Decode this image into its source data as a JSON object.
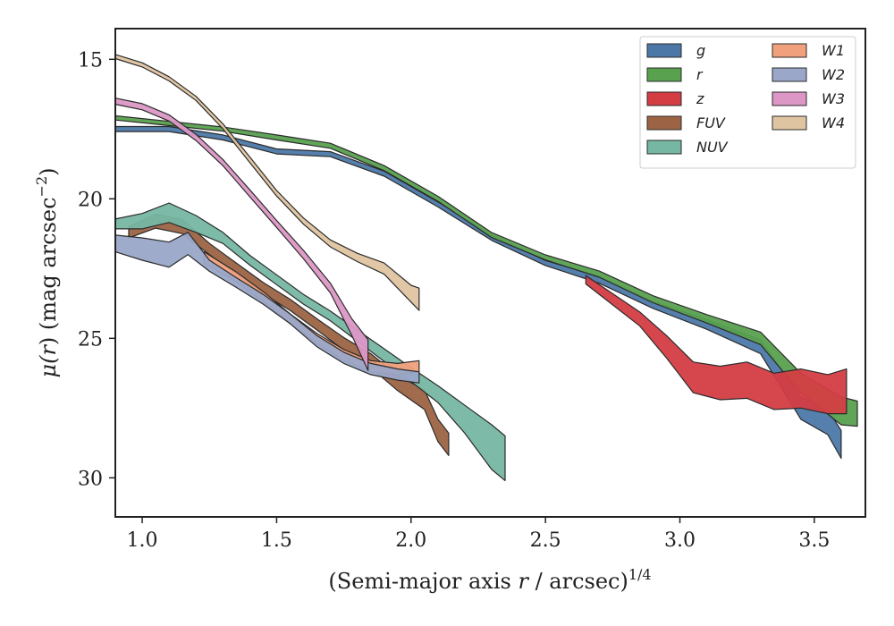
{
  "chart_data": {
    "type": "area",
    "title": "",
    "xlabel_main": "(Semi-major axis ",
    "xlabel_var": "r",
    "xlabel_tail": " / arcsec)",
    "xlabel_exp": "1/4",
    "ylabel_pre": "μ(",
    "ylabel_var": "r",
    "ylabel_post": ") (mag arcsec",
    "ylabel_exp": "−2",
    "ylabel_close": ")",
    "xlim": [
      0.9,
      3.69
    ],
    "ylim": [
      31.4,
      13.9
    ],
    "y_inverted": true,
    "xticks": [
      1.0,
      1.5,
      2.0,
      2.5,
      3.0,
      3.5
    ],
    "xtick_labels": [
      "1.0",
      "1.5",
      "2.0",
      "2.5",
      "3.0",
      "3.5"
    ],
    "yticks": [
      15,
      20,
      25,
      30
    ],
    "ytick_labels": [
      "15",
      "20",
      "25",
      "30"
    ],
    "grid": false,
    "legend_placement": "top-right",
    "series": [
      {
        "name": "g",
        "color": "#4c78a8",
        "x": [
          0.9,
          1.1,
          1.3,
          1.5,
          1.7,
          1.9,
          2.1,
          2.3,
          2.5,
          2.7,
          2.9,
          3.1,
          3.3,
          3.45,
          3.55,
          3.6
        ],
        "y": [
          17.5,
          17.5,
          17.8,
          18.3,
          18.4,
          19.1,
          20.2,
          21.4,
          22.3,
          22.9,
          23.8,
          24.5,
          25.3,
          27.5,
          28.0,
          28.8
        ],
        "w": [
          0.18,
          0.18,
          0.18,
          0.18,
          0.18,
          0.18,
          0.18,
          0.18,
          0.18,
          0.25,
          0.25,
          0.35,
          0.5,
          0.8,
          0.9,
          1.0
        ]
      },
      {
        "name": "r",
        "color": "#59a14f",
        "x": [
          0.9,
          1.1,
          1.3,
          1.5,
          1.7,
          1.9,
          2.1,
          2.3,
          2.5,
          2.7,
          2.9,
          3.1,
          3.3,
          3.45,
          3.6,
          3.66
        ],
        "y": [
          17.1,
          17.3,
          17.5,
          17.8,
          18.1,
          18.9,
          20.0,
          21.3,
          22.1,
          22.7,
          23.6,
          24.3,
          25.0,
          26.6,
          27.6,
          27.7
        ],
        "w": [
          0.15,
          0.15,
          0.15,
          0.18,
          0.18,
          0.18,
          0.18,
          0.18,
          0.18,
          0.22,
          0.25,
          0.3,
          0.45,
          0.7,
          1.0,
          0.9
        ]
      },
      {
        "name": "z",
        "color": "#d43d43",
        "x": [
          2.65,
          2.75,
          2.85,
          2.95,
          3.05,
          3.15,
          3.25,
          3.35,
          3.45,
          3.55,
          3.62
        ],
        "y": [
          22.9,
          23.6,
          24.3,
          25.3,
          26.4,
          26.6,
          26.5,
          26.9,
          26.8,
          27.0,
          26.9
        ],
        "w": [
          0.3,
          0.4,
          0.5,
          0.8,
          1.1,
          1.2,
          1.3,
          1.3,
          1.4,
          1.4,
          1.6
        ]
      },
      {
        "name": "FUV",
        "color": "#9c6444",
        "x": [
          0.95,
          1.05,
          1.15,
          1.25,
          1.35,
          1.45,
          1.55,
          1.65,
          1.75,
          1.85,
          1.95,
          2.05,
          2.1,
          2.14
        ],
        "y": [
          21.2,
          20.8,
          21.0,
          21.8,
          22.5,
          23.2,
          23.8,
          24.5,
          25.2,
          25.8,
          26.6,
          27.2,
          28.3,
          28.8
        ],
        "w": [
          0.4,
          0.5,
          0.5,
          0.4,
          0.4,
          0.4,
          0.4,
          0.4,
          0.45,
          0.5,
          0.55,
          0.7,
          0.8,
          0.8
        ]
      },
      {
        "name": "NUV",
        "color": "#76b7a3",
        "x": [
          0.9,
          1.0,
          1.1,
          1.2,
          1.3,
          1.4,
          1.5,
          1.6,
          1.7,
          1.8,
          1.9,
          2.0,
          2.1,
          2.2,
          2.3,
          2.35
        ],
        "y": [
          20.9,
          20.8,
          20.5,
          20.9,
          21.4,
          22.2,
          22.9,
          23.6,
          24.2,
          24.9,
          25.6,
          26.3,
          27.0,
          27.9,
          28.9,
          29.3
        ],
        "w": [
          0.35,
          0.55,
          0.7,
          0.6,
          0.4,
          0.35,
          0.35,
          0.35,
          0.35,
          0.4,
          0.45,
          0.5,
          0.6,
          1.0,
          1.6,
          1.6
        ]
      },
      {
        "name": "W1",
        "color": "#f0a07c",
        "x": [
          1.23,
          1.35,
          1.45,
          1.55,
          1.65,
          1.75,
          1.85,
          1.95,
          2.03
        ],
        "y": [
          22.1,
          22.8,
          23.5,
          24.3,
          25.0,
          25.6,
          26.0,
          26.1,
          26.0
        ],
        "w": [
          0.4,
          0.35,
          0.35,
          0.35,
          0.35,
          0.4,
          0.4,
          0.4,
          0.4
        ]
      },
      {
        "name": "W2",
        "color": "#9aa7c8",
        "x": [
          0.9,
          1.0,
          1.1,
          1.17,
          1.25,
          1.35,
          1.45,
          1.55,
          1.65,
          1.75,
          1.85,
          1.95,
          2.03
        ],
        "y": [
          21.6,
          21.8,
          22.0,
          21.6,
          22.4,
          23.0,
          23.6,
          24.3,
          25.1,
          25.7,
          26.1,
          26.3,
          26.4
        ],
        "w": [
          0.6,
          0.8,
          0.9,
          0.8,
          0.4,
          0.35,
          0.35,
          0.35,
          0.4,
          0.4,
          0.4,
          0.4,
          0.4
        ]
      },
      {
        "name": "W3",
        "color": "#dc97c6",
        "x": [
          0.9,
          1.0,
          1.1,
          1.2,
          1.3,
          1.4,
          1.5,
          1.6,
          1.7,
          1.78,
          1.84
        ],
        "y": [
          16.5,
          16.7,
          17.1,
          17.8,
          18.7,
          19.8,
          20.9,
          22.0,
          23.2,
          24.6,
          25.6
        ],
        "w": [
          0.22,
          0.22,
          0.22,
          0.22,
          0.22,
          0.25,
          0.25,
          0.3,
          0.35,
          0.6,
          1.1
        ]
      },
      {
        "name": "W4",
        "color": "#dfc4a1",
        "x": [
          0.9,
          1.0,
          1.1,
          1.2,
          1.3,
          1.4,
          1.5,
          1.6,
          1.7,
          1.8,
          1.9,
          2.0,
          2.03
        ],
        "y": [
          14.9,
          15.2,
          15.7,
          16.4,
          17.4,
          18.6,
          19.8,
          20.8,
          21.6,
          22.1,
          22.5,
          23.4,
          23.6
        ],
        "w": [
          0.15,
          0.15,
          0.15,
          0.15,
          0.18,
          0.2,
          0.2,
          0.22,
          0.25,
          0.3,
          0.4,
          0.6,
          0.8
        ]
      }
    ]
  }
}
